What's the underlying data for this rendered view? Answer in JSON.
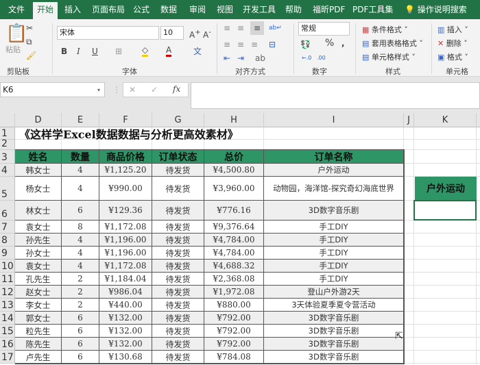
{
  "tabs": [
    "文件",
    "开始",
    "插入",
    "页面布局",
    "公式",
    "数据",
    "审阅",
    "视图",
    "开发工具",
    "帮助",
    "福昕PDF",
    "PDF工具集"
  ],
  "active_tab": "开始",
  "tell_me": "操作说明搜索",
  "ribbon": {
    "clipboard": {
      "paste": "粘贴",
      "label": "剪贴板"
    },
    "font": {
      "name": "宋体",
      "size": "10",
      "bold": "B",
      "italic": "I",
      "underline": "U",
      "label": "字体"
    },
    "alignment": {
      "label": "对齐方式"
    },
    "number": {
      "format": "常规",
      "percent": "%",
      "comma": ",",
      "label": "数字"
    },
    "styles": {
      "conditional": "条件格式",
      "table": "套用表格格式",
      "cell": "单元格样式",
      "label": "样式"
    },
    "cells": {
      "insert": "插入",
      "delete": "删除",
      "format": "格式",
      "label": "单元格"
    }
  },
  "name_box": "K6",
  "formula": "",
  "columns": [
    "D",
    "E",
    "F",
    "G",
    "H",
    "I",
    "J",
    "K"
  ],
  "rows": [
    "1",
    "2",
    "3",
    "4",
    "5",
    "6",
    "7",
    "8",
    "9",
    "10",
    "11",
    "12",
    "13",
    "14",
    "15",
    "16",
    "17"
  ],
  "title": "《这样学Excel数据数据与分析更高效素材》",
  "headers": [
    "姓名",
    "数量",
    "商品价格",
    "订单状态",
    "总价",
    "订单名称"
  ],
  "data": [
    [
      "韩女士",
      "4",
      "¥1,125.20",
      "待发货",
      "¥4,500.80",
      "户外运动"
    ],
    [
      "杨女士",
      "4",
      "¥990.00",
      "待发货",
      "¥3,960.00",
      "动物园，海洋馆-探究奇幻海底世界"
    ],
    [
      "林女士",
      "6",
      "¥129.36",
      "待发货",
      "¥776.16",
      "3D数字音乐剧"
    ],
    [
      "袁女士",
      "8",
      "¥1,172.08",
      "待发货",
      "¥9,376.64",
      "手工DIY"
    ],
    [
      "孙先生",
      "4",
      "¥1,196.00",
      "待发货",
      "¥4,784.00",
      "手工DIY"
    ],
    [
      "孙女士",
      "4",
      "¥1,196.00",
      "待发货",
      "¥4,784.00",
      "手工DIY"
    ],
    [
      "袁女士",
      "4",
      "¥1,172.08",
      "待发货",
      "¥4,688.32",
      "手工DIY"
    ],
    [
      "孔先生",
      "2",
      "¥1,184.04",
      "待发货",
      "¥2,368.08",
      "手工DIY"
    ],
    [
      "赵女士",
      "2",
      "¥986.04",
      "待发货",
      "¥1,972.08",
      "登山户外游2天"
    ],
    [
      "李女士",
      "2",
      "¥440.00",
      "待发货",
      "¥880.00",
      "3天体验夏季夏令营活动"
    ],
    [
      "郭女士",
      "6",
      "¥132.00",
      "待发货",
      "¥792.00",
      "3D数字音乐剧"
    ],
    [
      "粒先生",
      "6",
      "¥132.00",
      "待发货",
      "¥792.00",
      "3D数字音乐剧"
    ],
    [
      "陈先生",
      "6",
      "¥132.00",
      "待发货",
      "¥792.00",
      "3D数字音乐剧"
    ],
    [
      "卢先生",
      "6",
      "¥130.68",
      "待发货",
      "¥784.08",
      "3D数字音乐剧"
    ]
  ],
  "k5_value": "户外运动",
  "colors": {
    "ribbon_green": "#217346",
    "header_fill": "#2e9566",
    "band_fill": "#efefef"
  }
}
